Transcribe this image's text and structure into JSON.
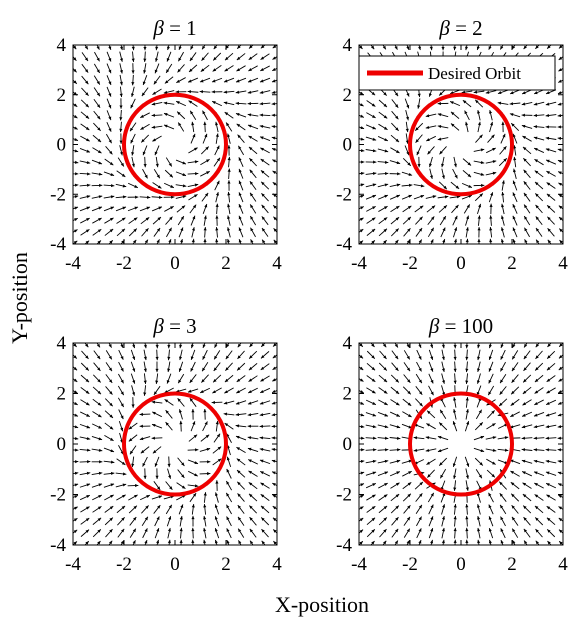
{
  "figure": {
    "xlabel": "X-position",
    "ylabel": "Y-position"
  },
  "legend": {
    "label": "Desired Orbit",
    "color": "#ee0000",
    "placement": "top-right of upper-right panel"
  },
  "chart_data": [
    {
      "type": "quiver",
      "title": "β = 1",
      "title_symbol": "β",
      "title_value": "= 1",
      "beta": 1,
      "xlim": [
        -4,
        4
      ],
      "ylim": [
        -4,
        4
      ],
      "xticks": [
        -4,
        -2,
        0,
        2,
        4
      ],
      "yticks": [
        -4,
        -2,
        0,
        2,
        4
      ],
      "grid_n": 18,
      "orbit_radius": 2,
      "grid": false
    },
    {
      "type": "quiver",
      "title": "β = 2",
      "title_symbol": "β",
      "title_value": "= 2",
      "beta": 2,
      "xlim": [
        -4,
        4
      ],
      "ylim": [
        -4,
        4
      ],
      "xticks": [
        -4,
        -2,
        0,
        2,
        4
      ],
      "yticks": [
        -4,
        -2,
        0,
        2,
        4
      ],
      "grid_n": 18,
      "orbit_radius": 2,
      "grid": false,
      "legend": true
    },
    {
      "type": "quiver",
      "title": "β = 3",
      "title_symbol": "β",
      "title_value": "= 3",
      "beta": 3,
      "xlim": [
        -4,
        4
      ],
      "ylim": [
        -4,
        4
      ],
      "xticks": [
        -4,
        -2,
        0,
        2,
        4
      ],
      "yticks": [
        -4,
        -2,
        0,
        2,
        4
      ],
      "grid_n": 18,
      "orbit_radius": 2,
      "grid": false
    },
    {
      "type": "quiver",
      "title": "β = 100",
      "title_symbol": "β",
      "title_value": "= 100",
      "beta": 100,
      "xlim": [
        -4,
        4
      ],
      "ylim": [
        -4,
        4
      ],
      "xticks": [
        -4,
        -2,
        0,
        2,
        4
      ],
      "yticks": [
        -4,
        -2,
        0,
        2,
        4
      ],
      "grid_n": 18,
      "orbit_radius": 2,
      "grid": false
    }
  ]
}
